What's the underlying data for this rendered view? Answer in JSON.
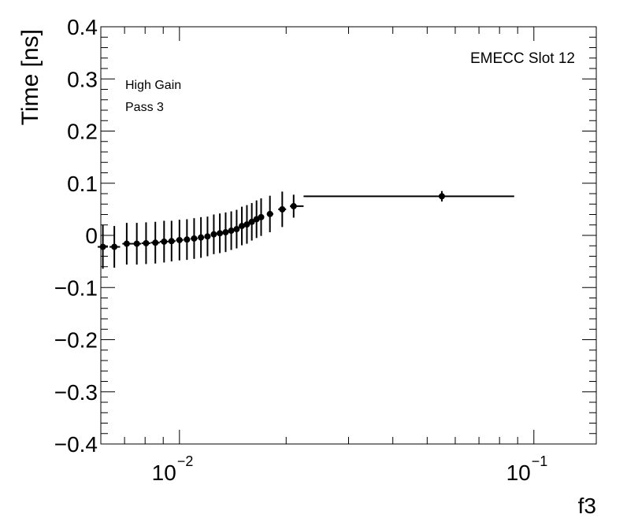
{
  "chart_data": {
    "type": "scatter",
    "title": "",
    "xlabel": "f3",
    "ylabel": "Time [ns]",
    "xscale": "log",
    "xlim": [
      0.006,
      0.15
    ],
    "ylim": [
      -0.4,
      0.4
    ],
    "y_ticks": [
      -0.4,
      -0.3,
      -0.2,
      -0.1,
      0,
      0.1,
      0.2,
      0.3,
      0.4
    ],
    "y_tick_labels": [
      "−0.4",
      "−0.3",
      "−0.2",
      "−0.1",
      "0",
      "0.1",
      "0.2",
      "0.3",
      "0.4"
    ],
    "x_major_ticks": [
      0.01,
      0.1
    ],
    "x_major_labels": [
      {
        "base": "10",
        "exp": "−2"
      },
      {
        "base": "10",
        "exp": "−1"
      }
    ],
    "annotations": {
      "top_right": "EMECC Slot 12",
      "gain": "High Gain",
      "pass": "Pass 3"
    },
    "series": [
      {
        "name": "High Gain Pass 3",
        "color": "#000000",
        "points": [
          {
            "x": 0.00608,
            "y": -0.022,
            "xerr": [
              0.00588,
              0.00628
            ],
            "yerr": 0.042
          },
          {
            "x": 0.00655,
            "y": -0.022,
            "xerr": [
              0.00635,
              0.0068
            ],
            "yerr": 0.04
          },
          {
            "x": 0.0071,
            "y": -0.016,
            "xerr": [
              0.0069,
              0.00735
            ],
            "yerr": 0.04
          },
          {
            "x": 0.00758,
            "y": -0.016,
            "xerr": [
              0.00735,
              0.0078
            ],
            "yerr": 0.04
          },
          {
            "x": 0.00805,
            "y": -0.015,
            "xerr": [
              0.00782,
              0.00828
            ],
            "yerr": 0.04
          },
          {
            "x": 0.00855,
            "y": -0.014,
            "xerr": [
              0.0083,
              0.0088
            ],
            "yerr": 0.04
          },
          {
            "x": 0.00905,
            "y": -0.012,
            "xerr": [
              0.0088,
              0.0093
            ],
            "yerr": 0.04
          },
          {
            "x": 0.0095,
            "y": -0.011,
            "xerr": [
              0.0093,
              0.00975
            ],
            "yerr": 0.039
          },
          {
            "x": 0.01,
            "y": -0.009,
            "xerr": [
              0.00978,
              0.01025
            ],
            "yerr": 0.039
          },
          {
            "x": 0.0105,
            "y": -0.008,
            "xerr": [
              0.01028,
              0.01072
            ],
            "yerr": 0.039
          },
          {
            "x": 0.011,
            "y": -0.006,
            "xerr": [
              0.01075,
              0.01125
            ],
            "yerr": 0.039
          },
          {
            "x": 0.0115,
            "y": -0.004,
            "xerr": [
              0.01128,
              0.01175
            ],
            "yerr": 0.039
          },
          {
            "x": 0.012,
            "y": -0.002,
            "xerr": [
              0.01178,
              0.01225
            ],
            "yerr": 0.038
          },
          {
            "x": 0.0125,
            "y": 0.002,
            "xerr": [
              0.01228,
              0.01272
            ],
            "yerr": 0.038
          },
          {
            "x": 0.013,
            "y": 0.004,
            "xerr": [
              0.01275,
              0.01325
            ],
            "yerr": 0.038
          },
          {
            "x": 0.0135,
            "y": 0.006,
            "xerr": [
              0.01328,
              0.01375
            ],
            "yerr": 0.038
          },
          {
            "x": 0.014,
            "y": 0.009,
            "xerr": [
              0.01378,
              0.01425
            ],
            "yerr": 0.037
          },
          {
            "x": 0.0145,
            "y": 0.012,
            "xerr": [
              0.01428,
              0.01475
            ],
            "yerr": 0.037
          },
          {
            "x": 0.015,
            "y": 0.018,
            "xerr": [
              0.01478,
              0.01525
            ],
            "yerr": 0.037
          },
          {
            "x": 0.0155,
            "y": 0.021,
            "xerr": [
              0.01528,
              0.01575
            ],
            "yerr": 0.037
          },
          {
            "x": 0.016,
            "y": 0.026,
            "xerr": [
              0.01578,
              0.01625
            ],
            "yerr": 0.036
          },
          {
            "x": 0.0165,
            "y": 0.031,
            "xerr": [
              0.01628,
              0.01675
            ],
            "yerr": 0.036
          },
          {
            "x": 0.017,
            "y": 0.035,
            "xerr": [
              0.01678,
              0.01725
            ],
            "yerr": 0.036
          },
          {
            "x": 0.018,
            "y": 0.041,
            "xerr": [
              0.01765,
              0.0184
            ],
            "yerr": 0.035
          },
          {
            "x": 0.0195,
            "y": 0.05,
            "xerr": [
              0.019,
              0.02
            ],
            "yerr": 0.034
          },
          {
            "x": 0.021,
            "y": 0.056,
            "xerr": [
              0.0205,
              0.0224
            ],
            "yerr": 0.022
          },
          {
            "x": 0.055,
            "y": 0.075,
            "xerr": [
              0.0224,
              0.088
            ],
            "yerr": 0.01
          }
        ]
      }
    ]
  }
}
